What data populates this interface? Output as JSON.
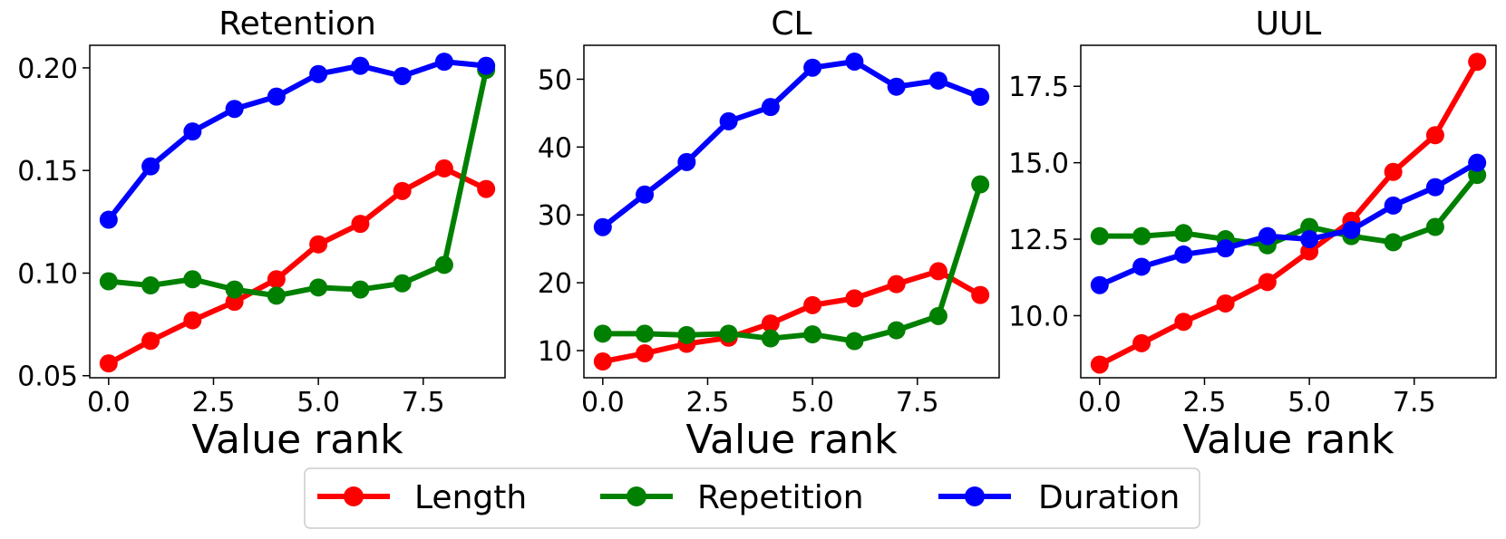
{
  "chart_data": [
    {
      "type": "line",
      "title": "Retention",
      "xlabel": "Value rank",
      "ylabel": "",
      "x": [
        0,
        1,
        2,
        3,
        4,
        5,
        6,
        7,
        8,
        9
      ],
      "xlim": [
        -0.45,
        9.45
      ],
      "ylim": [
        0.049,
        0.211
      ],
      "xticks": [
        0,
        2.5,
        5,
        7.5
      ],
      "xtick_labels": [
        "0.0",
        "2.5",
        "5.0",
        "7.5"
      ],
      "yticks": [
        0.05,
        0.1,
        0.15,
        0.2
      ],
      "ytick_labels": [
        "0.05",
        "0.10",
        "0.15",
        "0.20"
      ],
      "series": [
        {
          "name": "Length",
          "values": [
            0.056,
            0.067,
            0.077,
            0.086,
            0.097,
            0.114,
            0.124,
            0.14,
            0.151,
            0.141
          ]
        },
        {
          "name": "Repetition",
          "values": [
            0.096,
            0.094,
            0.097,
            0.092,
            0.089,
            0.093,
            0.092,
            0.095,
            0.104,
            0.199
          ]
        },
        {
          "name": "Duration",
          "values": [
            0.126,
            0.152,
            0.169,
            0.18,
            0.186,
            0.197,
            0.201,
            0.196,
            0.203,
            0.201
          ]
        }
      ]
    },
    {
      "type": "line",
      "title": "CL",
      "xlabel": "Value rank",
      "ylabel": "",
      "x": [
        0,
        1,
        2,
        3,
        4,
        5,
        6,
        7,
        8,
        9
      ],
      "xlim": [
        -0.45,
        9.45
      ],
      "ylim": [
        6.0,
        55.0
      ],
      "xticks": [
        0,
        2.5,
        5,
        7.5
      ],
      "xtick_labels": [
        "0.0",
        "2.5",
        "5.0",
        "7.5"
      ],
      "yticks": [
        10,
        20,
        30,
        40,
        50
      ],
      "ytick_labels": [
        "10",
        "20",
        "30",
        "40",
        "50"
      ],
      "series": [
        {
          "name": "Length",
          "values": [
            8.4,
            9.6,
            11.0,
            11.9,
            14.0,
            16.7,
            17.7,
            19.8,
            21.7,
            18.2
          ]
        },
        {
          "name": "Repetition",
          "values": [
            12.5,
            12.5,
            12.3,
            12.5,
            11.8,
            12.4,
            11.4,
            13.0,
            15.1,
            34.5
          ]
        },
        {
          "name": "Duration",
          "values": [
            28.2,
            33.0,
            37.8,
            43.8,
            45.9,
            51.7,
            52.6,
            48.9,
            49.8,
            47.4
          ]
        }
      ]
    },
    {
      "type": "line",
      "title": "UUL",
      "xlabel": "Value rank",
      "ylabel": "",
      "x": [
        0,
        1,
        2,
        3,
        4,
        5,
        6,
        7,
        8,
        9
      ],
      "xlim": [
        -0.45,
        9.45
      ],
      "ylim": [
        7.97,
        18.84
      ],
      "xticks": [
        0,
        2.5,
        5,
        7.5
      ],
      "xtick_labels": [
        "0.0",
        "2.5",
        "5.0",
        "7.5"
      ],
      "yticks": [
        10.0,
        12.5,
        15.0,
        17.5
      ],
      "ytick_labels": [
        "10.0",
        "12.5",
        "15.0",
        "17.5"
      ],
      "series": [
        {
          "name": "Length",
          "values": [
            8.4,
            9.1,
            9.8,
            10.4,
            11.1,
            12.1,
            13.1,
            14.7,
            15.9,
            18.3
          ]
        },
        {
          "name": "Repetition",
          "values": [
            12.6,
            12.6,
            12.7,
            12.5,
            12.3,
            12.9,
            12.6,
            12.4,
            12.9,
            14.6
          ]
        },
        {
          "name": "Duration",
          "values": [
            11.0,
            11.6,
            12.0,
            12.2,
            12.6,
            12.5,
            12.8,
            13.6,
            14.2,
            15.0
          ]
        }
      ]
    }
  ],
  "legend": {
    "placement": "bottom-center",
    "entries": [
      {
        "label": "Length",
        "color": "#ff0000"
      },
      {
        "label": "Repetition",
        "color": "#008000"
      },
      {
        "label": "Duration",
        "color": "#0000ff"
      }
    ]
  },
  "colors": {
    "Length": "#ff0000",
    "Repetition": "#008000",
    "Duration": "#0000ff"
  }
}
